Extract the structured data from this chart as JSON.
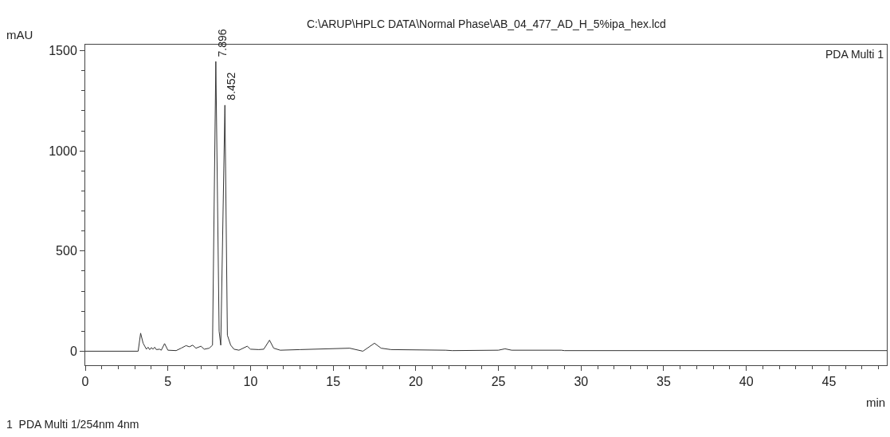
{
  "chart_data": {
    "type": "line",
    "title": "C:\\ARUP\\HPLC DATA\\Normal Phase\\AB_04_477_AD_H_5%ipa_hex.lcd",
    "xlabel": "min",
    "ylabel": "mAU",
    "xlim": [
      0,
      48.5
    ],
    "ylim": [
      -70,
      1530
    ],
    "xticks": [
      0,
      5,
      10,
      15,
      20,
      25,
      30,
      35,
      40,
      45
    ],
    "yticks": [
      0,
      500,
      1000,
      1500
    ],
    "marker": "none",
    "line_style": "solid",
    "series": [
      {
        "color": "#333333",
        "x": [
          0,
          3.2,
          3.35,
          3.5,
          3.6,
          3.7,
          3.8,
          3.9,
          4.0,
          4.1,
          4.2,
          4.3,
          4.5,
          4.6,
          4.8,
          5.0,
          5.5,
          5.8,
          6.1,
          6.3,
          6.5,
          6.7,
          7.0,
          7.2,
          7.5,
          7.7,
          7.9,
          8.1,
          8.2,
          8.45,
          8.6,
          8.8,
          9.0,
          9.3,
          9.8,
          10.0,
          10.5,
          10.8,
          11.15,
          11.4,
          11.8,
          13,
          16,
          16.8,
          17.5,
          17.9,
          18.5,
          21.8,
          22.2,
          25.0,
          25.4,
          25.8,
          28.8,
          29,
          48.5
        ],
        "values": [
          0,
          0,
          90,
          40,
          25,
          10,
          20,
          8,
          18,
          10,
          20,
          8,
          10,
          5,
          38,
          5,
          3,
          15,
          28,
          22,
          30,
          15,
          25,
          10,
          15,
          30,
          1446,
          100,
          30,
          1228,
          80,
          30,
          10,
          5,
          25,
          10,
          8,
          10,
          55,
          15,
          5,
          8,
          15,
          0,
          40,
          15,
          8,
          5,
          3,
          5,
          12,
          5,
          5,
          3,
          3
        ]
      }
    ],
    "annotations": [
      "PDA Multi 1",
      "1  PDA Multi 1/254nm 4nm",
      {
        "text": "7.896",
        "x": 7.9,
        "y": 1446
      },
      {
        "text": "8.452",
        "x": 8.45,
        "y": 1228
      }
    ]
  }
}
